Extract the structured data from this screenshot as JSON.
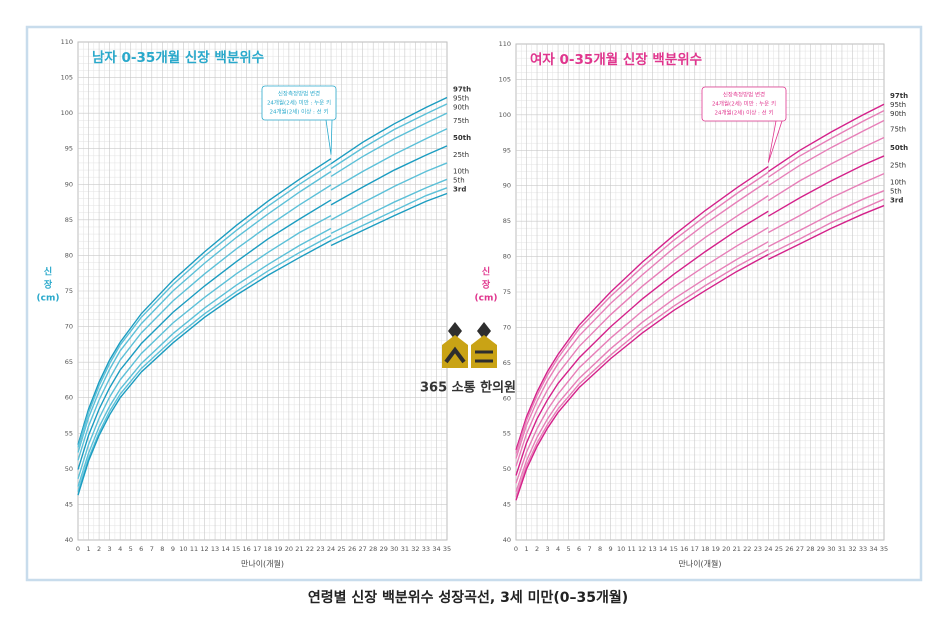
{
  "chart_data": [
    {
      "type": "line",
      "title": "남자 0-35개월 신장 백분위수",
      "title_color": "#2aa9cb",
      "x_label": "만나이(개월)",
      "y_label": [
        "신",
        "장",
        "(cm)"
      ],
      "annotation": [
        "신장측정방법 변경",
        "24개월(2세) 미만 : 누운 키",
        "24개월(2세) 이상 : 선 키"
      ],
      "x": [
        0,
        1,
        2,
        3,
        4,
        6,
        9,
        12,
        15,
        18,
        21,
        24,
        24,
        27,
        30,
        33,
        35
      ],
      "xlim": [
        0,
        35
      ],
      "ylim": [
        40,
        110
      ],
      "xticks": [
        0,
        1,
        2,
        3,
        4,
        5,
        6,
        7,
        8,
        9,
        10,
        11,
        12,
        13,
        14,
        15,
        16,
        17,
        18,
        19,
        20,
        21,
        22,
        23,
        24,
        25,
        26,
        27,
        28,
        29,
        30,
        31,
        32,
        33,
        34,
        35
      ],
      "yticks": [
        40,
        45,
        50,
        55,
        60,
        65,
        70,
        75,
        80,
        85,
        90,
        95,
        100,
        105,
        110
      ],
      "grid": true,
      "series": [
        {
          "name": "97th",
          "color": "#1b9cc0",
          "values": [
            53.4,
            58.4,
            62.2,
            65.3,
            67.8,
            71.8,
            76.5,
            80.5,
            84.2,
            87.6,
            90.7,
            93.6,
            92.9,
            95.9,
            98.5,
            100.8,
            102.2
          ]
        },
        {
          "name": "95th",
          "color": "#5cc0d8",
          "values": [
            53.0,
            57.9,
            61.7,
            64.8,
            67.4,
            71.3,
            75.9,
            79.9,
            83.5,
            86.9,
            90.0,
            92.9,
            92.2,
            95.1,
            97.7,
            99.9,
            101.3
          ]
        },
        {
          "name": "90th",
          "color": "#5cc0d8",
          "values": [
            52.3,
            57.2,
            60.9,
            64.0,
            66.6,
            70.4,
            75.0,
            78.9,
            82.5,
            85.8,
            88.9,
            91.8,
            91.1,
            93.9,
            96.4,
            98.6,
            100.0
          ]
        },
        {
          "name": "75th",
          "color": "#5cc0d8",
          "values": [
            51.2,
            56.0,
            59.7,
            62.7,
            65.3,
            69.1,
            73.6,
            77.4,
            80.9,
            84.1,
            87.1,
            89.9,
            89.2,
            91.8,
            94.2,
            96.4,
            97.8
          ]
        },
        {
          "name": "50th",
          "color": "#1b9cc0",
          "values": [
            49.9,
            54.7,
            58.4,
            61.4,
            63.9,
            67.6,
            72.0,
            75.7,
            79.1,
            82.3,
            85.1,
            87.8,
            87.1,
            89.6,
            92.0,
            94.1,
            95.4
          ]
        },
        {
          "name": "25th",
          "color": "#5cc0d8",
          "values": [
            48.6,
            53.4,
            57.1,
            60.1,
            62.5,
            66.2,
            70.5,
            74.1,
            77.4,
            80.4,
            83.2,
            85.6,
            85.0,
            87.4,
            89.7,
            91.8,
            93.0
          ]
        },
        {
          "name": "10th",
          "color": "#5cc0d8",
          "values": [
            47.5,
            52.2,
            55.9,
            58.8,
            61.2,
            64.8,
            69.0,
            72.6,
            75.8,
            78.7,
            81.4,
            83.8,
            83.1,
            85.3,
            87.5,
            89.5,
            90.7
          ]
        },
        {
          "name": "5th",
          "color": "#5cc0d8",
          "values": [
            46.8,
            51.5,
            55.1,
            58.1,
            60.5,
            64.1,
            68.2,
            71.8,
            74.9,
            77.8,
            80.4,
            82.8,
            82.1,
            84.2,
            86.3,
            88.4,
            89.5
          ]
        },
        {
          "name": "3rd",
          "color": "#1b9cc0",
          "values": [
            46.3,
            51.1,
            54.7,
            57.6,
            60.0,
            63.6,
            67.7,
            71.3,
            74.4,
            77.2,
            79.7,
            82.1,
            81.4,
            83.5,
            85.6,
            87.6,
            88.7
          ]
        }
      ]
    },
    {
      "type": "line",
      "title": "여자 0-35개월 신장 백분위수",
      "title_color": "#e0368e",
      "x_label": "만나이(개월)",
      "y_label": [
        "신",
        "장",
        "(cm)"
      ],
      "annotation": [
        "신장측정방법 변경",
        "24개월(2세) 미만 : 누운 키",
        "24개월(2세) 이상 : 선 키"
      ],
      "x": [
        0,
        1,
        2,
        3,
        4,
        6,
        9,
        12,
        15,
        18,
        21,
        24,
        24,
        27,
        30,
        33,
        35
      ],
      "xlim": [
        0,
        35
      ],
      "ylim": [
        40,
        110
      ],
      "xticks": [
        0,
        1,
        2,
        3,
        4,
        5,
        6,
        7,
        8,
        9,
        10,
        11,
        12,
        13,
        14,
        15,
        16,
        17,
        18,
        19,
        20,
        21,
        22,
        23,
        24,
        25,
        26,
        27,
        28,
        29,
        30,
        31,
        32,
        33,
        34,
        35
      ],
      "yticks": [
        40,
        45,
        50,
        55,
        60,
        65,
        70,
        75,
        80,
        85,
        90,
        95,
        100,
        105,
        110
      ],
      "grid": true,
      "series": [
        {
          "name": "97th",
          "color": "#d4218a",
          "values": [
            52.7,
            57.4,
            60.9,
            63.8,
            66.2,
            70.3,
            75.0,
            79.2,
            83.0,
            86.5,
            89.7,
            92.7,
            92.0,
            95.0,
            97.6,
            100.0,
            101.5
          ]
        },
        {
          "name": "95th",
          "color": "#e77fb8",
          "values": [
            52.2,
            56.9,
            60.4,
            63.3,
            65.7,
            69.8,
            74.4,
            78.5,
            82.3,
            85.7,
            88.9,
            91.9,
            91.2,
            94.2,
            96.7,
            99.1,
            100.6
          ]
        },
        {
          "name": "90th",
          "color": "#e77fb8",
          "values": [
            51.5,
            56.2,
            59.6,
            62.5,
            64.9,
            68.8,
            73.4,
            77.4,
            81.2,
            84.6,
            87.7,
            90.7,
            90.0,
            92.9,
            95.4,
            97.7,
            99.2
          ]
        },
        {
          "name": "75th",
          "color": "#e77fb8",
          "values": [
            50.4,
            55.0,
            58.4,
            61.2,
            63.5,
            67.3,
            71.8,
            75.8,
            79.4,
            82.7,
            85.7,
            88.6,
            87.9,
            90.7,
            93.1,
            95.4,
            96.8
          ]
        },
        {
          "name": "50th",
          "color": "#d4218a",
          "values": [
            49.1,
            53.7,
            57.1,
            59.8,
            62.1,
            65.7,
            70.1,
            74.0,
            77.5,
            80.7,
            83.7,
            86.4,
            85.7,
            88.3,
            90.7,
            92.9,
            94.2
          ]
        },
        {
          "name": "25th",
          "color": "#e77fb8",
          "values": [
            48.0,
            52.4,
            55.7,
            58.4,
            60.6,
            64.3,
            68.5,
            72.3,
            75.7,
            78.7,
            81.5,
            84.1,
            83.4,
            85.8,
            88.3,
            90.4,
            91.7
          ]
        },
        {
          "name": "10th",
          "color": "#e77fb8",
          "values": [
            46.8,
            51.2,
            54.5,
            57.1,
            59.3,
            62.8,
            67.0,
            70.7,
            74.0,
            76.9,
            79.6,
            82.1,
            81.4,
            83.7,
            86.0,
            88.1,
            89.3
          ]
        },
        {
          "name": "5th",
          "color": "#e77fb8",
          "values": [
            46.1,
            50.5,
            53.7,
            56.3,
            58.5,
            62.0,
            66.1,
            69.8,
            73.0,
            75.9,
            78.6,
            81.0,
            80.3,
            82.5,
            84.8,
            86.8,
            88.1
          ]
        },
        {
          "name": "3rd",
          "color": "#d4218a",
          "values": [
            45.6,
            50.0,
            53.2,
            55.8,
            58.0,
            61.5,
            65.6,
            69.2,
            72.4,
            75.2,
            77.9,
            80.3,
            79.6,
            81.8,
            84.0,
            86.0,
            87.2
          ]
        }
      ]
    }
  ],
  "logo": {
    "text": "365 소통 한의원"
  },
  "caption": "연령별 신장 백분위수 성장곡선, 3세 미만(0–35개월)"
}
